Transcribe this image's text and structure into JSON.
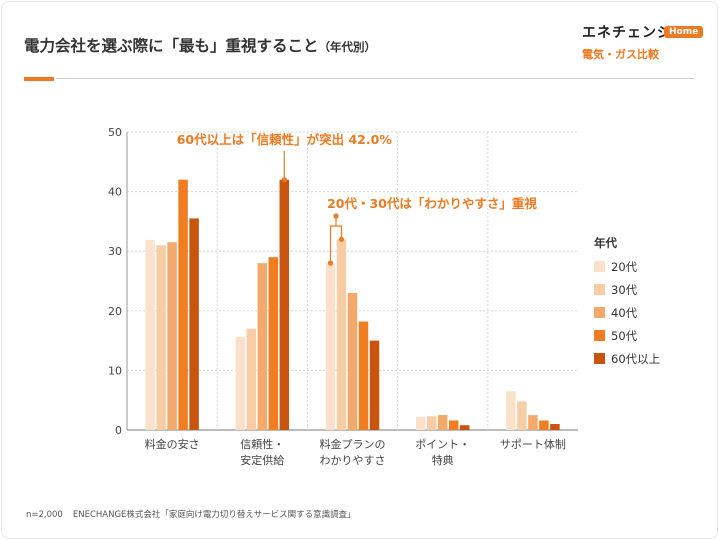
{
  "header": {
    "title": "電力会社を選ぶ際に「最も」重視すること",
    "subtitle": "（年代別）"
  },
  "logo": {
    "name": "エネチェンジ",
    "badge": "Home",
    "tagline": "電気・ガス比較"
  },
  "legend": {
    "title": "年代"
  },
  "colors": {
    "accent": "#ec7a22",
    "series": [
      "#fbe1cb",
      "#f7cda5",
      "#f4a96c",
      "#f07d20",
      "#c8540e"
    ]
  },
  "annotations": {
    "top": "60代以上は「信頼性」が突出 42.0%",
    "middle": "20代・30代は「わかりやすさ」重視"
  },
  "footer": {
    "sample": "n=2,000",
    "source": "ENECHANGE株式会社「家庭向け電力切り替えサービス関する意識調査」"
  },
  "chart_data": {
    "type": "bar",
    "title": "電力会社を選ぶ際に「最も」重視すること",
    "categories": [
      "料金の安さ",
      "信頼性・\n安定供給",
      "料金プランの\nわかりやすさ",
      "ポイント・\n特典",
      "サポート体制"
    ],
    "series": [
      {
        "name": "20代",
        "values": [
          31.9,
          15.6,
          28.0,
          2.2,
          6.5
        ]
      },
      {
        "name": "30代",
        "values": [
          31.0,
          17.0,
          32.0,
          2.3,
          4.8
        ]
      },
      {
        "name": "40代",
        "values": [
          31.5,
          28.0,
          23.0,
          2.5,
          2.5
        ]
      },
      {
        "name": "50代",
        "values": [
          42.0,
          29.0,
          18.2,
          1.6,
          1.6
        ]
      },
      {
        "name": "60代以上",
        "values": [
          35.5,
          42.0,
          15.0,
          0.8,
          1.0
        ]
      }
    ],
    "ylim": [
      0,
      50
    ],
    "yticks": [
      0,
      10,
      20,
      30,
      40,
      50
    ],
    "grid": true,
    "legend_position": "right"
  }
}
